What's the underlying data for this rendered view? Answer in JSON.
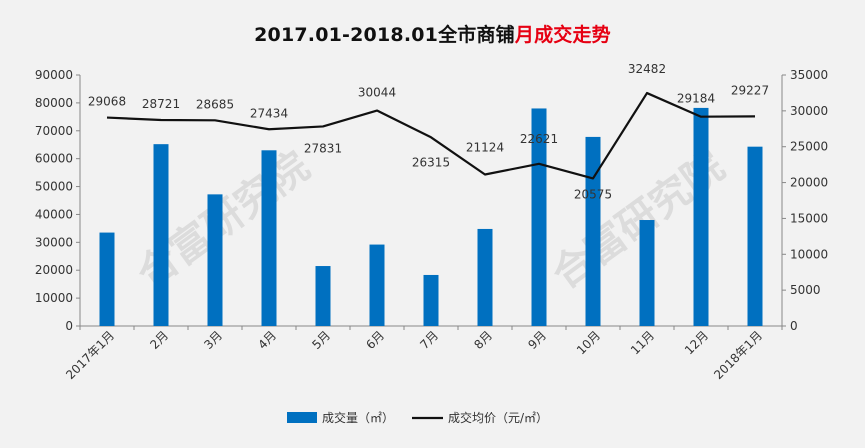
{
  "title": {
    "part1": "2017.01-2018.01全市商铺",
    "part2": "月成交走势"
  },
  "watermarks": [
    "合富研究院",
    "合富研究院"
  ],
  "colors": {
    "bar": "#0070c0",
    "line": "#111111",
    "title_highlight": "#e60012",
    "watermark": "#dcdcdc"
  },
  "chart_data": {
    "type": "bar",
    "categories": [
      "2017年1月",
      "2月",
      "3月",
      "4月",
      "5月",
      "6月",
      "7月",
      "8月",
      "9月",
      "10月",
      "11月",
      "12月",
      "2018年1月"
    ],
    "series": [
      {
        "name": "成交量（㎡）",
        "type": "bar",
        "axis": "left",
        "values": [
          33500,
          65200,
          47200,
          63000,
          21500,
          29200,
          18300,
          34800,
          78000,
          67800,
          38000,
          78200,
          64300
        ]
      },
      {
        "name": "成交均价（元/㎡）",
        "type": "line",
        "axis": "right",
        "values": [
          29068,
          28721,
          28685,
          27434,
          27831,
          30044,
          26315,
          21124,
          22621,
          20575,
          32482,
          29184,
          29227
        ],
        "labels": [
          "29068",
          "28721",
          "28685",
          "27434",
          "27831",
          "30044",
          "26315",
          "21124",
          "22621",
          "20575",
          "32482",
          "29184",
          "29227"
        ]
      }
    ],
    "y_left": {
      "min": 0,
      "max": 90000,
      "ticks": [
        "0",
        "10000",
        "20000",
        "30000",
        "40000",
        "50000",
        "60000",
        "70000",
        "80000",
        "90000"
      ]
    },
    "y_right": {
      "min": 0,
      "max": 35000,
      "ticks": [
        "0",
        "5000",
        "10000",
        "15000",
        "20000",
        "25000",
        "30000",
        "35000"
      ]
    },
    "legend": {
      "position": "bottom",
      "bar_label": "成交量（㎡）",
      "line_label": "成交均价（元/㎡）"
    },
    "grid": false
  }
}
